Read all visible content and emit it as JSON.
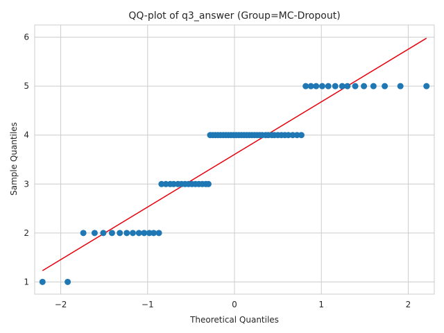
{
  "chart_data": {
    "type": "scatter",
    "title": "QQ-plot of q3_answer (Group=MC-Dropout)",
    "xlabel": "Theoretical Quantiles",
    "ylabel": "Sample Quantiles",
    "xlim": [
      -2.3,
      2.3
    ],
    "ylim": [
      0.75,
      6.25
    ],
    "xticks": [
      -2,
      -1,
      0,
      1,
      2
    ],
    "xtick_labels": [
      "−2",
      "−1",
      "0",
      "1",
      "2"
    ],
    "yticks": [
      1,
      2,
      3,
      4,
      5,
      6
    ],
    "ytick_labels": [
      "1",
      "2",
      "3",
      "4",
      "5",
      "6"
    ],
    "grid": true,
    "colors": {
      "points": "#1f77b4",
      "fit_line": "#e8000b",
      "grid": "#cccccc",
      "frame": "#cccccc"
    },
    "series": [
      {
        "kind": "points",
        "x": [
          -2.21,
          -1.92,
          -1.74,
          -1.61,
          -1.51,
          -1.41,
          -1.32,
          -1.24,
          -1.17,
          -1.1,
          -1.04,
          -0.98,
          -0.93,
          -0.87,
          -0.84,
          -0.79,
          -0.74,
          -0.7,
          -0.65,
          -0.61,
          -0.57,
          -0.53,
          -0.49,
          -0.45,
          -0.41,
          -0.37,
          -0.33,
          -0.3,
          -0.28,
          -0.25,
          -0.22,
          -0.19,
          -0.16,
          -0.13,
          -0.1,
          -0.07,
          -0.04,
          -0.01,
          0.02,
          0.05,
          0.08,
          0.11,
          0.14,
          0.17,
          0.2,
          0.23,
          0.26,
          0.29,
          0.32,
          0.36,
          0.39,
          0.43,
          0.46,
          0.5,
          0.54,
          0.58,
          0.62,
          0.67,
          0.72,
          0.77,
          0.82,
          0.88,
          0.94,
          1.01,
          1.08,
          1.16,
          1.24,
          1.3,
          1.39,
          1.49,
          1.6,
          1.73,
          1.91,
          2.21
        ],
        "y": [
          1,
          1,
          2,
          2,
          2,
          2,
          2,
          2,
          2,
          2,
          2,
          2,
          2,
          2,
          3,
          3,
          3,
          3,
          3,
          3,
          3,
          3,
          3,
          3,
          3,
          3,
          3,
          3,
          4,
          4,
          4,
          4,
          4,
          4,
          4,
          4,
          4,
          4,
          4,
          4,
          4,
          4,
          4,
          4,
          4,
          4,
          4,
          4,
          4,
          4,
          4,
          4,
          4,
          4,
          4,
          4,
          4,
          4,
          4,
          4,
          5,
          5,
          5,
          5,
          5,
          5,
          5,
          5,
          5,
          5,
          5,
          5,
          5,
          5
        ]
      },
      {
        "kind": "line",
        "x": [
          -2.21,
          2.21
        ],
        "y": [
          1.23,
          5.98
        ]
      }
    ]
  }
}
